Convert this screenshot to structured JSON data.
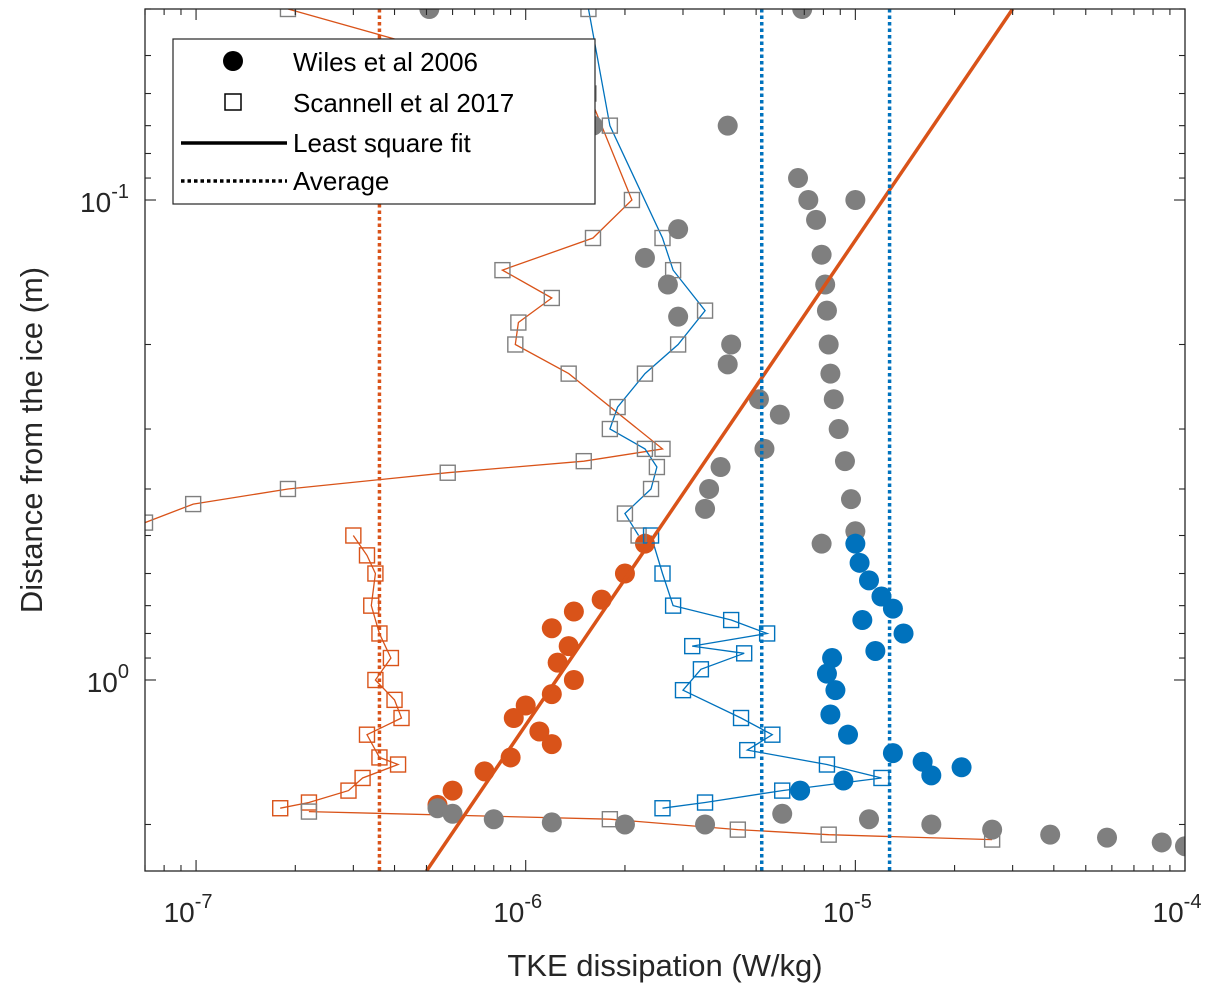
{
  "chart_data": {
    "type": "scatter",
    "xlabel": "TKE dissipation (W/kg)",
    "ylabel": "Distance from the ice (m)",
    "xscale": "log",
    "yscale": "log",
    "y_reversed": true,
    "xlim": [
      7e-08,
      0.0001
    ],
    "ylim": [
      0.04,
      2.5
    ],
    "x_ticks": [
      {
        "base": "10",
        "exp": "-7",
        "value": 1e-07
      },
      {
        "base": "10",
        "exp": "-6",
        "value": 1e-06
      },
      {
        "base": "10",
        "exp": "-5",
        "value": 1e-05
      },
      {
        "base": "10",
        "exp": "-4",
        "value": 0.0001
      }
    ],
    "y_ticks": [
      {
        "base": "10",
        "exp": "-1",
        "value": 0.1
      },
      {
        "base": "10",
        "exp": "0",
        "value": 1
      }
    ],
    "grid": false,
    "legend": {
      "position": "top-left",
      "entries": [
        {
          "label": "Wiles et al 2006",
          "symbol": "filled-circle"
        },
        {
          "label": "Scannell et al 2017",
          "symbol": "open-square"
        },
        {
          "label": "Least square fit",
          "symbol": "solid-line"
        },
        {
          "label": "Average",
          "symbol": "dotted-line"
        }
      ]
    },
    "colors": {
      "orange": "#d95319",
      "blue": "#0072bd",
      "gray": "#7f7f7f"
    },
    "series": [
      {
        "marker": "circle",
        "color": "#7f7f7f",
        "line": "none",
        "points": [
          [
            5.1e-07,
            0.04
          ],
          [
            6.9e-06,
            0.04
          ],
          [
            1.6e-06,
            0.07
          ],
          [
            4.1e-06,
            0.07
          ],
          [
            6.7e-06,
            0.09
          ],
          [
            1e-05,
            0.1
          ],
          [
            2.9e-06,
            0.115
          ],
          [
            2.3e-06,
            0.132
          ],
          [
            2.7e-06,
            0.15
          ],
          [
            2.9e-06,
            0.175
          ],
          [
            4.2e-06,
            0.2
          ],
          [
            4.1e-06,
            0.22
          ],
          [
            5.1e-06,
            0.26
          ],
          [
            5.9e-06,
            0.28
          ],
          [
            5.3e-06,
            0.33
          ],
          [
            3.9e-06,
            0.36
          ],
          [
            3.6e-06,
            0.4
          ],
          [
            3.5e-06,
            0.44
          ],
          [
            7.9e-06,
            0.52
          ]
        ]
      },
      {
        "marker": "circle",
        "color": "#7f7f7f",
        "line": "none",
        "points": [
          [
            7.2e-06,
            0.1
          ],
          [
            7.6e-06,
            0.11
          ],
          [
            7.9e-06,
            0.13
          ],
          [
            8.1e-06,
            0.15
          ],
          [
            8.2e-06,
            0.17
          ],
          [
            8.3e-06,
            0.2
          ],
          [
            8.4e-06,
            0.23
          ],
          [
            8.6e-06,
            0.26
          ],
          [
            8.9e-06,
            0.3
          ],
          [
            9.3e-06,
            0.35
          ],
          [
            9.7e-06,
            0.42
          ],
          [
            1e-05,
            0.49
          ]
        ]
      },
      {
        "marker": "circle",
        "color": "#0072bd",
        "line": "none",
        "points": [
          [
            1e-05,
            0.52
          ],
          [
            1.03e-05,
            0.57
          ],
          [
            1.1e-05,
            0.62
          ],
          [
            1.2e-05,
            0.67
          ],
          [
            1.3e-05,
            0.71
          ],
          [
            1.05e-05,
            0.75
          ],
          [
            1.4e-05,
            0.8
          ],
          [
            1.15e-05,
            0.87
          ],
          [
            8.5e-06,
            0.9
          ],
          [
            8.2e-06,
            0.97
          ],
          [
            8.7e-06,
            1.05
          ],
          [
            8.4e-06,
            1.18
          ],
          [
            9.5e-06,
            1.3
          ],
          [
            1.3e-05,
            1.42
          ],
          [
            1.6e-05,
            1.48
          ],
          [
            2.1e-05,
            1.52
          ],
          [
            1.7e-05,
            1.58
          ],
          [
            9.2e-06,
            1.62
          ],
          [
            6.8e-06,
            1.7
          ]
        ]
      },
      {
        "marker": "circle",
        "color": "#d95319",
        "line": "none",
        "points": [
          [
            2.3e-06,
            0.52
          ],
          [
            2e-06,
            0.6
          ],
          [
            1.7e-06,
            0.68
          ],
          [
            1.4e-06,
            0.72
          ],
          [
            1.2e-06,
            0.78
          ],
          [
            1.35e-06,
            0.85
          ],
          [
            1.25e-06,
            0.92
          ],
          [
            1.4e-06,
            1.0
          ],
          [
            1.2e-06,
            1.07
          ],
          [
            1e-06,
            1.13
          ],
          [
            9.2e-07,
            1.2
          ],
          [
            1.1e-06,
            1.28
          ],
          [
            1.2e-06,
            1.36
          ],
          [
            9e-07,
            1.45
          ],
          [
            7.5e-07,
            1.55
          ],
          [
            6e-07,
            1.7
          ],
          [
            5.4e-07,
            1.82
          ]
        ]
      },
      {
        "marker": "circle",
        "color": "#7f7f7f",
        "line": "none",
        "points": [
          [
            5.4e-07,
            1.85
          ],
          [
            6e-07,
            1.9
          ],
          [
            8e-07,
            1.95
          ],
          [
            1.2e-06,
            1.98
          ],
          [
            2e-06,
            2.0
          ],
          [
            3.5e-06,
            2.0
          ],
          [
            6e-06,
            1.9
          ],
          [
            1.1e-05,
            1.95
          ],
          [
            1.7e-05,
            2.0
          ],
          [
            2.6e-05,
            2.05
          ],
          [
            3.9e-05,
            2.1
          ],
          [
            5.8e-05,
            2.13
          ],
          [
            8.5e-05,
            2.18
          ],
          [
            0.0001,
            2.22
          ]
        ]
      },
      {
        "marker": "square",
        "color": "#7f7f7f",
        "line": "#d95319",
        "points": [
          [
            1.9e-07,
            0.04
          ],
          [
            1.55e-06,
            0.06
          ],
          [
            2.1e-06,
            0.1
          ],
          [
            1.6e-06,
            0.12
          ],
          [
            8.5e-07,
            0.14
          ],
          [
            1.2e-06,
            0.16
          ],
          [
            9.5e-07,
            0.18
          ],
          [
            9.3e-07,
            0.2
          ],
          [
            1.35e-06,
            0.23
          ],
          [
            2.6e-06,
            0.33
          ],
          [
            1.5e-06,
            0.35
          ],
          [
            5.8e-07,
            0.37
          ],
          [
            1.9e-07,
            0.4
          ],
          [
            9.8e-08,
            0.43
          ],
          [
            7e-08,
            0.47
          ]
        ]
      },
      {
        "marker": "square",
        "color": "#7f7f7f",
        "line": "#0072bd",
        "points": [
          [
            1.55e-06,
            0.04
          ],
          [
            1.8e-06,
            0.07
          ],
          [
            2.6e-06,
            0.12
          ],
          [
            2.8e-06,
            0.14
          ],
          [
            3.5e-06,
            0.17
          ],
          [
            2.9e-06,
            0.2
          ],
          [
            2.3e-06,
            0.23
          ],
          [
            1.9e-06,
            0.27
          ],
          [
            1.8e-06,
            0.3
          ],
          [
            2.3e-06,
            0.33
          ],
          [
            2.5e-06,
            0.36
          ],
          [
            2.4e-06,
            0.4
          ],
          [
            2e-06,
            0.45
          ],
          [
            2.2e-06,
            0.5
          ]
        ]
      },
      {
        "marker": "square",
        "color": "#d95319",
        "line": "#d95319",
        "points": [
          [
            3e-07,
            0.5
          ],
          [
            3.3e-07,
            0.55
          ],
          [
            3.5e-07,
            0.6
          ],
          [
            3.4e-07,
            0.7
          ],
          [
            3.6e-07,
            0.8
          ],
          [
            3.9e-07,
            0.9
          ],
          [
            3.5e-07,
            1.0
          ],
          [
            4e-07,
            1.1
          ],
          [
            4.2e-07,
            1.2
          ],
          [
            3.3e-07,
            1.3
          ],
          [
            3.6e-07,
            1.45
          ],
          [
            4.1e-07,
            1.5
          ],
          [
            3.2e-07,
            1.6
          ],
          [
            2.9e-07,
            1.7
          ],
          [
            2.2e-07,
            1.8
          ],
          [
            1.8e-07,
            1.85
          ]
        ]
      },
      {
        "marker": "square",
        "color": "#0072bd",
        "line": "#0072bd",
        "points": [
          [
            2.4e-06,
            0.5
          ],
          [
            2.6e-06,
            0.6
          ],
          [
            2.8e-06,
            0.7
          ],
          [
            4.2e-06,
            0.75
          ],
          [
            5.4e-06,
            0.8
          ],
          [
            3.2e-06,
            0.85
          ],
          [
            4.6e-06,
            0.88
          ],
          [
            3.4e-06,
            0.95
          ],
          [
            3e-06,
            1.05
          ],
          [
            4.5e-06,
            1.2
          ],
          [
            5.6e-06,
            1.3
          ],
          [
            4.7e-06,
            1.4
          ],
          [
            8.2e-06,
            1.5
          ],
          [
            1.2e-05,
            1.6
          ],
          [
            6e-06,
            1.7
          ],
          [
            3.5e-06,
            1.8
          ],
          [
            2.6e-06,
            1.85
          ]
        ]
      },
      {
        "marker": "square",
        "color": "#7f7f7f",
        "line": "#d95319",
        "points": [
          [
            2.2e-07,
            1.88
          ],
          [
            1.8e-06,
            1.95
          ],
          [
            4.4e-06,
            2.05
          ],
          [
            8.3e-06,
            2.1
          ],
          [
            2.6e-05,
            2.15
          ]
        ]
      }
    ],
    "fit_line": {
      "color": "#d95319",
      "points": [
        [
          5e-07,
          2.5
        ],
        [
          3e-05,
          0.04
        ]
      ]
    },
    "averages": [
      {
        "x": 3.6e-07,
        "color": "#d95319"
      },
      {
        "x": 5.2e-06,
        "color": "#0072bd"
      },
      {
        "x": 1.27e-05,
        "color": "#0072bd"
      }
    ]
  }
}
